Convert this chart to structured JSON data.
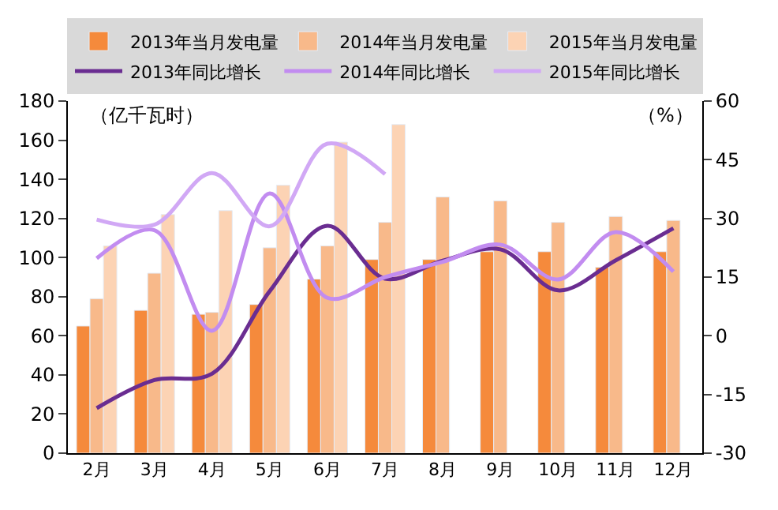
{
  "chart_data": {
    "type": "bar",
    "ylabel": "（亿千瓦时）",
    "y2label": "（%）",
    "categories": [
      "2月",
      "3月",
      "4月",
      "5月",
      "6月",
      "7月",
      "8月",
      "9月",
      "10月",
      "11月",
      "12月"
    ],
    "series": [
      {
        "name": "2013年当月发电量",
        "color": "#f58a3c",
        "values": [
          65,
          73,
          71,
          76,
          89,
          99,
          99,
          103,
          103,
          95,
          103
        ]
      },
      {
        "name": "2014年当月发电量",
        "color": "#f8b98a",
        "values": [
          79,
          92,
          72,
          105,
          106,
          118,
          131,
          129,
          118,
          121,
          119
        ]
      },
      {
        "name": "2015年当月发电量",
        "color": "#fcd3b4",
        "values": [
          106,
          122,
          124,
          137,
          159,
          168,
          null,
          null,
          null,
          null,
          null
        ]
      },
      {
        "name": "2013年同比增长",
        "type": "line",
        "axis": "y2",
        "color": "#6a2d91",
        "values": [
          -18.5,
          -11.3,
          -9.7,
          11.4,
          28.1,
          14.6,
          19.2,
          22.1,
          11.6,
          19.3,
          27.5
        ]
      },
      {
        "name": "2014年同比增长",
        "type": "line",
        "axis": "y2",
        "color": "#c28cf0",
        "values": [
          19.8,
          27,
          1.3,
          36.4,
          9.7,
          15,
          18.9,
          23.3,
          14.4,
          26.5,
          16.4
        ]
      },
      {
        "name": "2015年同比增长",
        "type": "line",
        "axis": "y2",
        "color": "#d1a8f5",
        "values": [
          29.7,
          28.4,
          41.6,
          28,
          49.1,
          41.3,
          null,
          null,
          null,
          null,
          null
        ]
      }
    ],
    "ylim": [
      0,
      180
    ],
    "yticks": [
      0,
      20,
      40,
      60,
      80,
      100,
      120,
      140,
      160,
      180
    ],
    "y2lim": [
      -30,
      60
    ],
    "y2ticks": [
      -30,
      -15,
      0,
      15,
      30,
      45,
      60
    ],
    "legend": "top",
    "marker": "none",
    "line_style": "solid"
  }
}
